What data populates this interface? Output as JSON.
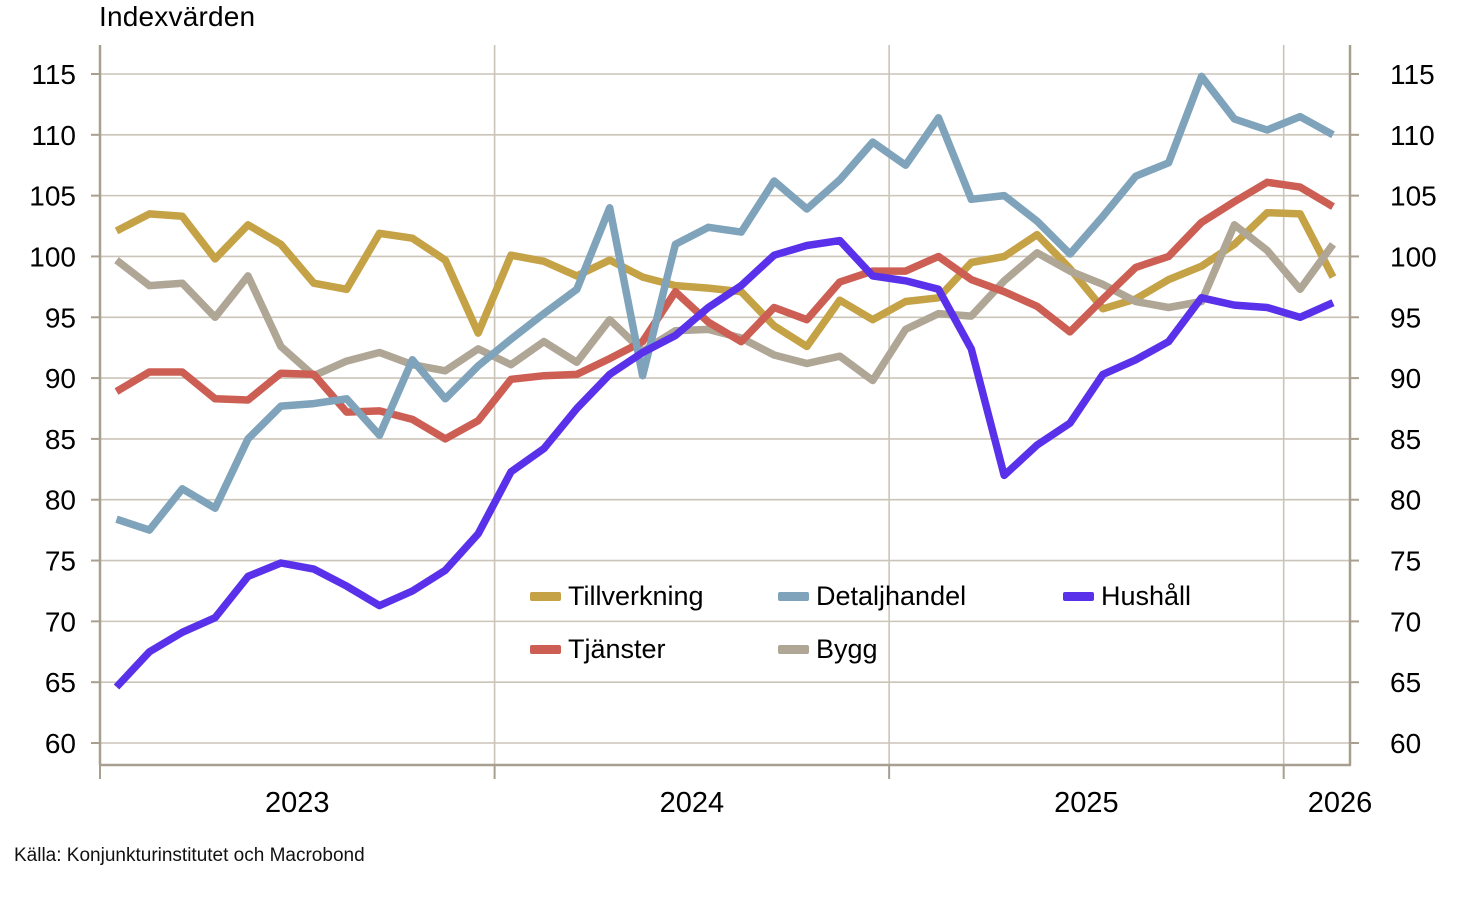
{
  "title": "Indexvärden",
  "source": "Källa: Konjunkturinstitutet och Macrobond",
  "chart_data": {
    "type": "line",
    "title": "Indexvärden",
    "x_monthly_from": "2023-01",
    "x_monthly_to": "2026-02",
    "x_tick_labels": [
      "2023",
      "2024",
      "2025",
      "2026"
    ],
    "y_ticks": [
      60,
      65,
      70,
      75,
      80,
      85,
      90,
      95,
      100,
      105,
      110,
      115
    ],
    "y_axis_sides": [
      "left",
      "right"
    ],
    "grid": true,
    "legend_position": "inside-bottom-center",
    "series": [
      {
        "name": "Tillverkning",
        "color": "#C4A245",
        "values": [
          102.1,
          103.5,
          103.3,
          99.8,
          102.6,
          101.0,
          97.8,
          97.3,
          101.9,
          101.5,
          99.7,
          93.7,
          100.1,
          99.6,
          98.4,
          99.7,
          98.3,
          97.6,
          97.4,
          97.1,
          94.3,
          92.6,
          96.4,
          94.8,
          96.3,
          96.6,
          99.5,
          100.0,
          101.8,
          99.0,
          95.7,
          96.5,
          98.1,
          99.2,
          101.0,
          103.6,
          103.5,
          98.3
        ]
      },
      {
        "name": "Bygg",
        "color": "#AFA696",
        "values": [
          99.7,
          97.6,
          97.8,
          95.0,
          98.4,
          92.6,
          90.2,
          91.4,
          92.1,
          91.1,
          90.6,
          92.4,
          91.1,
          93.0,
          91.3,
          94.8,
          92.2,
          93.9,
          94.0,
          93.3,
          91.9,
          91.2,
          91.8,
          89.8,
          94.0,
          95.3,
          95.1,
          98.0,
          100.3,
          98.8,
          97.7,
          96.3,
          95.8,
          96.3,
          102.6,
          100.5,
          97.3,
          101.0
        ]
      },
      {
        "name": "Tjänster",
        "color": "#CC5E53",
        "values": [
          88.9,
          90.5,
          90.5,
          88.3,
          88.2,
          90.4,
          90.3,
          87.2,
          87.3,
          86.6,
          85.0,
          86.5,
          89.9,
          90.2,
          90.3,
          91.6,
          93.0,
          97.1,
          94.6,
          93.0,
          95.8,
          94.8,
          97.9,
          98.8,
          98.8,
          100.0,
          98.1,
          97.1,
          95.9,
          93.8,
          96.5,
          99.1,
          100.0,
          102.8,
          104.5,
          106.1,
          105.7,
          104.1
        ]
      },
      {
        "name": "Detaljhandel",
        "color": "#7EA3BA",
        "values": [
          78.4,
          77.5,
          80.9,
          79.3,
          85.0,
          87.7,
          87.9,
          88.3,
          85.3,
          91.5,
          88.3,
          91.0,
          93.2,
          95.3,
          97.3,
          104.0,
          90.2,
          101.0,
          102.4,
          102.0,
          106.2,
          103.9,
          106.3,
          109.4,
          107.5,
          111.4,
          104.7,
          105.0,
          102.9,
          100.2,
          103.3,
          106.6,
          107.7,
          114.8,
          111.3,
          110.4,
          111.5,
          110.0
        ]
      },
      {
        "name": "Hushåll",
        "color": "#5A31EA",
        "values": [
          64.6,
          67.5,
          69.1,
          70.3,
          73.7,
          74.8,
          74.3,
          72.9,
          71.3,
          72.5,
          74.2,
          77.2,
          82.3,
          84.2,
          87.5,
          90.3,
          92.1,
          93.5,
          95.8,
          97.6,
          100.1,
          100.9,
          101.3,
          98.4,
          98.0,
          97.3,
          92.4,
          82.0,
          84.5,
          86.3,
          90.3,
          91.5,
          93.0,
          96.6,
          96.0,
          95.8,
          95.0,
          96.2
        ]
      }
    ],
    "legend_layout": {
      "row1": [
        "Tillverkning",
        "Detaljhandel",
        "Hushåll"
      ],
      "row2": [
        "Tjänster",
        "Bygg"
      ]
    }
  }
}
